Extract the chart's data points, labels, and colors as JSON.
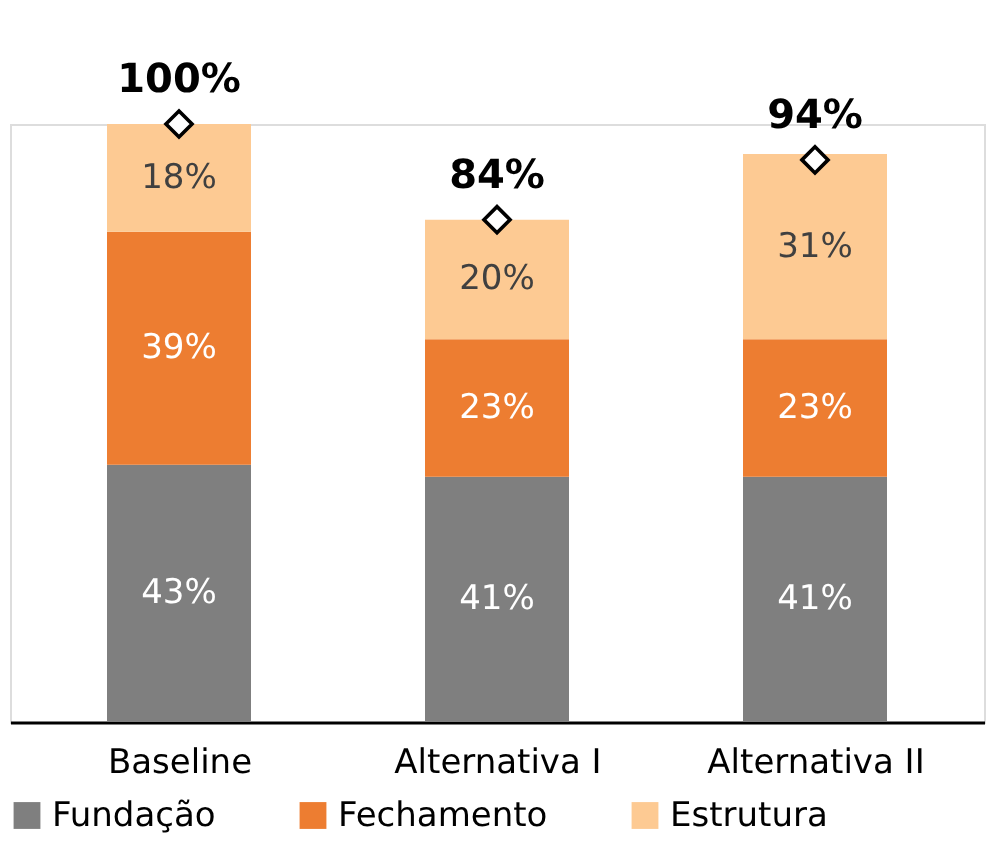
{
  "chart_data": {
    "type": "bar",
    "stacked": true,
    "categories": [
      "Baseline",
      "Alternativa I",
      "Alternativa II"
    ],
    "series": [
      {
        "name": "Fundação",
        "color": "#7f7f7f",
        "values": [
          43,
          41,
          41
        ],
        "value_labels": [
          "43%",
          "41%",
          "41%"
        ]
      },
      {
        "name": "Fechamento",
        "color": "#ed7d31",
        "values": [
          39,
          23,
          23
        ],
        "value_labels": [
          "39%",
          "23%",
          "23%"
        ]
      },
      {
        "name": "Estrutura",
        "color": "#fdca93",
        "values": [
          18,
          20,
          31
        ],
        "value_labels": [
          "18%",
          "20%",
          "31%"
        ]
      },
      {
        "type": "scatter",
        "color": "#000000",
        "marker": "diamond",
        "values": [
          100,
          84,
          94
        ]
      }
    ],
    "totals": [
      "100%",
      "84%",
      "94%"
    ],
    "legend": "bottom",
    "grid": false
  }
}
